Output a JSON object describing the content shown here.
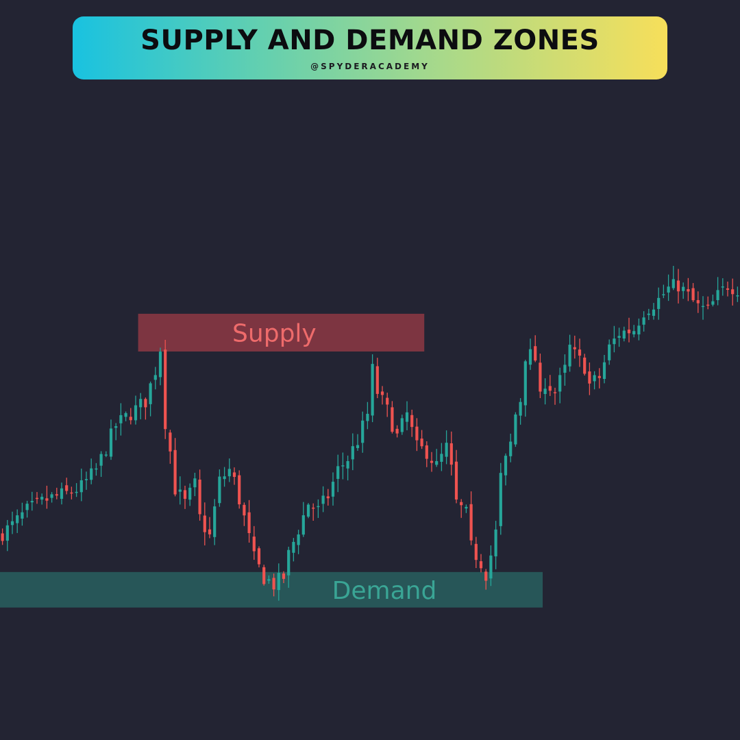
{
  "header": {
    "title": "SUPPLY AND DEMAND ZONES",
    "handle": "@SPYDERACADEMY"
  },
  "colors": {
    "background": "#232433",
    "bullish": "#26a69a",
    "bearish": "#ef5350",
    "supply_zone": "#b5414b",
    "demand_zone": "#2a6a66",
    "supply_text": "#ee6b6b",
    "demand_text": "#3aa595"
  },
  "chart_data": {
    "type": "candlestick",
    "title": "",
    "xlabel": "",
    "ylabel": "",
    "grid": false,
    "legend": "none",
    "xlim": [
      0,
      150
    ],
    "ylim": [
      0,
      100
    ],
    "zones": [
      {
        "name": "supply",
        "label": "Supply",
        "x_start": 28,
        "x_end": 86,
        "y_low": 52.5,
        "y_high": 57.6
      },
      {
        "name": "demand",
        "label": "Demand",
        "x_start": 0,
        "x_end": 110,
        "y_low": 17.9,
        "y_high": 22.7
      }
    ],
    "anchors": [
      [
        0,
        27.5
      ],
      [
        3,
        29.0
      ],
      [
        6,
        31.0
      ],
      [
        10,
        32.5
      ],
      [
        14,
        33.3
      ],
      [
        17,
        34.2
      ],
      [
        20,
        36.5
      ],
      [
        24,
        42.5
      ],
      [
        28,
        44.7
      ],
      [
        30,
        45.8
      ],
      [
        32,
        50.0
      ],
      [
        33,
        53.0
      ],
      [
        34,
        43.0
      ],
      [
        35,
        39.0
      ],
      [
        36,
        34.0
      ],
      [
        38,
        32.0
      ],
      [
        40,
        34.5
      ],
      [
        41,
        30.0
      ],
      [
        43,
        27.5
      ],
      [
        45,
        35.0
      ],
      [
        47,
        36.5
      ],
      [
        48,
        35.0
      ],
      [
        50,
        30.0
      ],
      [
        52,
        24.5
      ],
      [
        54,
        22.0
      ],
      [
        56,
        21.0
      ],
      [
        58,
        22.0
      ],
      [
        59,
        25.0
      ],
      [
        61,
        28.5
      ],
      [
        63,
        32.0
      ],
      [
        65,
        31.0
      ],
      [
        67,
        33.0
      ],
      [
        69,
        36.5
      ],
      [
        71,
        38.0
      ],
      [
        73,
        40.5
      ],
      [
        75,
        44.0
      ],
      [
        76,
        50.0
      ],
      [
        77,
        47.0
      ],
      [
        79,
        44.5
      ],
      [
        81,
        41.0
      ],
      [
        83,
        44.0
      ],
      [
        85,
        39.5
      ],
      [
        87,
        39.0
      ],
      [
        89,
        37.0
      ],
      [
        91,
        39.5
      ],
      [
        92,
        36.5
      ],
      [
        93,
        32.0
      ],
      [
        95,
        30.5
      ],
      [
        96,
        26.0
      ],
      [
        98,
        24.0
      ],
      [
        99,
        22.5
      ],
      [
        100,
        25.0
      ],
      [
        101,
        28.0
      ],
      [
        102,
        35.5
      ],
      [
        104,
        40.0
      ],
      [
        105,
        44.0
      ],
      [
        106,
        46.0
      ],
      [
        107,
        52.0
      ],
      [
        108,
        52.0
      ],
      [
        109,
        51.5
      ],
      [
        110,
        46.0
      ],
      [
        111,
        48.5
      ],
      [
        113,
        47.0
      ],
      [
        115,
        50.0
      ],
      [
        116,
        53.0
      ],
      [
        117,
        52.0
      ],
      [
        119,
        50.5
      ],
      [
        120,
        48.0
      ],
      [
        122,
        49.0
      ],
      [
        124,
        53.0
      ],
      [
        126,
        55.0
      ],
      [
        129,
        55.5
      ],
      [
        131,
        58.0
      ],
      [
        134,
        59.5
      ],
      [
        136,
        61.0
      ],
      [
        138,
        61.5
      ],
      [
        140,
        60.0
      ],
      [
        142,
        58.5
      ],
      [
        144,
        58.0
      ],
      [
        146,
        60.0
      ],
      [
        148,
        61.5
      ],
      [
        150,
        61.0
      ]
    ]
  }
}
